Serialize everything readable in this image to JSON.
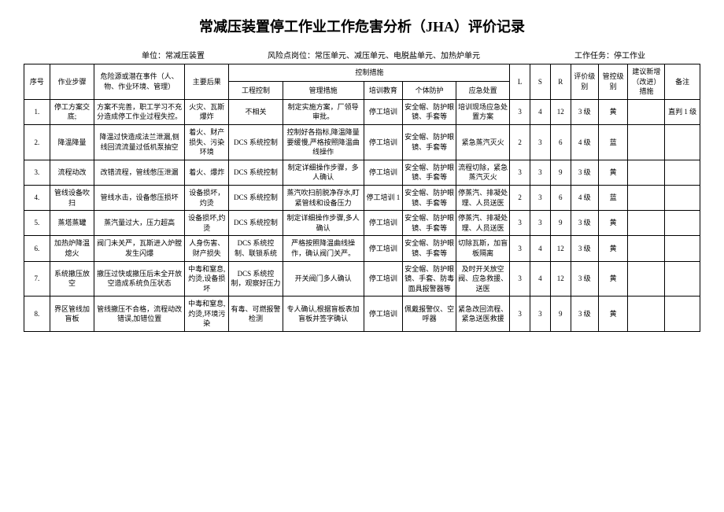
{
  "title": "常减压装置停工作业工作危害分析（JHA）评价记录",
  "header": {
    "unit_label": "单位：",
    "unit_value": "常减压装置",
    "risk_label": "风险点岗位：",
    "risk_value": "常压单元、减压单元、电脱盐单元、加热炉单元",
    "task_label": "工作任务：",
    "task_value": "停工作业"
  },
  "columns": {
    "seq": "序号",
    "step": "作业步骤",
    "hazard": "危险源或潜在事件（人、物、作业环境、管理）",
    "consequence": "主要后果",
    "control_group": "控制措施",
    "eng": "工程控制",
    "mgmt": "管理措施",
    "train": "培训教育",
    "ppe": "个体防护",
    "emerg": "应急处置",
    "l": "L",
    "s": "S",
    "r": "R",
    "eval": "评价级别",
    "ctrl": "管控级别",
    "sugg": "建议新增（改进）措施",
    "note": "备注"
  },
  "rows": [
    {
      "seq": "1.",
      "step": "停工方案交底;",
      "hazard": "方案不完善，职工学习不充分造成停工作业过程失控。",
      "consequence": "火灾、瓦斯爆炸",
      "eng": "不相关",
      "mgmt": "制定实施方案，厂领导审批。",
      "train": "停工培训",
      "ppe": "安全帽、防护眼镜、手套等",
      "emerg": "培训现场应急处置方案",
      "l": "3",
      "s": "4",
      "r": "12",
      "eval": "3 级",
      "ctrl": "黄",
      "sugg": "",
      "note": "直判 1 级"
    },
    {
      "seq": "2.",
      "step": "降温降量",
      "hazard": "降温过快造成法兰泄漏,侧线回流流量过低机泵抽空",
      "consequence": "着火、财产损失、污染环境",
      "eng": "DCS 系统控制",
      "mgmt": "控制好各指标,降温降量要缓慢,严格按照降温曲线操作",
      "train": "停工培训",
      "ppe": "安全帽、防护眼镜、手套等",
      "emerg": "紧急蒸汽灭火",
      "l": "2",
      "s": "3",
      "r": "6",
      "eval": "4 级",
      "ctrl": "蓝",
      "sugg": "",
      "note": ""
    },
    {
      "seq": "3.",
      "step": "流程动改",
      "hazard": "改错流程，管线憋压泄漏",
      "consequence": "着火、爆炸",
      "eng": "DCS 系统控制",
      "mgmt": "制定详细操作步骤，多人确认",
      "train": "停工培训",
      "ppe": "安全帽、防护眼镜、手套等",
      "emerg": "流程切除，紧急蒸汽灭火",
      "l": "3",
      "s": "3",
      "r": "9",
      "eval": "3 级",
      "ctrl": "黄",
      "sugg": "",
      "note": ""
    },
    {
      "seq": "4.",
      "step": "管线设备吹扫",
      "hazard": "管线水击，设备憋压损坏",
      "consequence": "设备损坏，灼烫",
      "eng": "DCS 系统控制",
      "mgmt": "蒸汽吹扫前脱净存水,盯紧管线和设备压力",
      "train": "停工培训 1",
      "ppe": "安全帽、防护眼镜、手套等",
      "emerg": "停蒸汽、排凝处理、人员送医",
      "l": "2",
      "s": "3",
      "r": "6",
      "eval": "4 级",
      "ctrl": "蓝",
      "sugg": "",
      "note": ""
    },
    {
      "seq": "5.",
      "step": "蒸塔蒸罐",
      "hazard": "蒸汽量过大，压力超高",
      "consequence": "设备损坏,灼烫",
      "eng": "DCS 系统控制",
      "mgmt": "制定详细操作步骤,多人确认",
      "train": "停工培训",
      "ppe": "安全帽、防护眼镜、手套等",
      "emerg": "停蒸汽、排凝处理、人员送医",
      "l": "3",
      "s": "3",
      "r": "9",
      "eval": "3 级",
      "ctrl": "黄",
      "sugg": "",
      "note": ""
    },
    {
      "seq": "6.",
      "step": "加热炉降温熄火",
      "hazard": "阀门未关严，瓦斯进入炉膛发生闪爆",
      "consequence": "人身伤害、财产损失",
      "eng": "DCS 系统控制、联锁系统",
      "mgmt": "严格按照降温曲线操作，确认阀门关严。",
      "train": "停工培训",
      "ppe": "安全帽、防护眼镜、手套等",
      "emerg": "切除瓦斯，加盲板隔离",
      "l": "3",
      "s": "4",
      "r": "12",
      "eval": "3 级",
      "ctrl": "黄",
      "sugg": "",
      "note": ""
    },
    {
      "seq": "7.",
      "step": "系统撤压放空",
      "hazard": "撤压过快或撤压后未全开放空造成系统负压状态",
      "consequence": "中毒和窒息,灼烫,设备损坏",
      "eng": "DCS 系统控制，观察好压力",
      "mgmt": "开关阀门多人确认",
      "train": "停工培训",
      "ppe": "安全帽、防护眼镜、手套、防毒面具报警器等",
      "emerg": "及时开关放空阀、应急救援、送医",
      "l": "3",
      "s": "4",
      "r": "12",
      "eval": "3 级",
      "ctrl": "黄",
      "sugg": "",
      "note": ""
    },
    {
      "seq": "8.",
      "step": "界区管线加盲板",
      "hazard": "管线撤压不合格，流程动改错误,加错位置",
      "consequence": "中毒和窒息,灼烫,环境污染",
      "eng": "有毒、可燃报警检测",
      "mgmt": "专人确认,根据盲板表加盲板并签字确认",
      "train": "停工培训",
      "ppe": "佩戴报警仪、空呼器",
      "emerg": "紧急改回流程、紧急送医救援",
      "l": "3",
      "s": "3",
      "r": "9",
      "eval": "3 级",
      "ctrl": "黄",
      "sugg": "",
      "note": ""
    }
  ]
}
